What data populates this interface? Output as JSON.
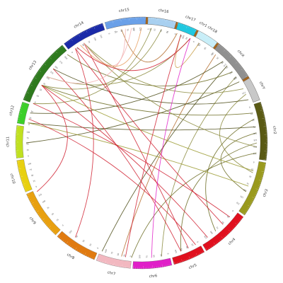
{
  "chart_data": {
    "type": "chord",
    "chromosomes": [
      {
        "name": "chr1",
        "color": "#a6661d",
        "start_deg": 345,
        "end_deg": 70,
        "ticks": [
          "0",
          "25",
          "50",
          "75",
          "100",
          "125",
          "150",
          "175",
          "200",
          "225"
        ]
      },
      {
        "name": "chr2",
        "color": "#5a5a14",
        "start_deg": 71,
        "end_deg": 98,
        "ticks": [
          "0",
          "25",
          "50",
          "75",
          "100",
          "125",
          "150",
          "175"
        ]
      },
      {
        "name": "chr3",
        "color": "#9a9a1e",
        "start_deg": 99,
        "end_deg": 125,
        "ticks": [
          "0",
          "25",
          "50",
          "75",
          "100",
          "125",
          "150"
        ]
      },
      {
        "name": "chr4",
        "color": "#e0101e",
        "start_deg": 126,
        "end_deg": 149,
        "ticks": [
          "0",
          "25",
          "50",
          "75",
          "100",
          "125"
        ]
      },
      {
        "name": "chr5",
        "color": "#e0101e",
        "start_deg": 150,
        "end_deg": 165,
        "ticks": [
          "0",
          "25",
          "50",
          "75",
          "100"
        ]
      },
      {
        "name": "chr6",
        "color": "#e020c8",
        "start_deg": 166,
        "end_deg": 184,
        "ticks": [
          "0",
          "25",
          "50",
          "75",
          "100"
        ]
      },
      {
        "name": "chr7",
        "color": "#f2b8c0",
        "start_deg": 185,
        "end_deg": 201,
        "ticks": [
          "0",
          "25",
          "50",
          "75",
          "100"
        ]
      },
      {
        "name": "chr8",
        "color": "#e07a10",
        "start_deg": 202,
        "end_deg": 222,
        "ticks": [
          "0",
          "25",
          "50",
          "75",
          "100"
        ]
      },
      {
        "name": "chr9",
        "color": "#e8a010",
        "start_deg": 223,
        "end_deg": 246,
        "ticks": [
          "0",
          "25",
          "50",
          "75",
          "100",
          "125"
        ]
      },
      {
        "name": "chr10",
        "color": "#e8d010",
        "start_deg": 247,
        "end_deg": 262,
        "ticks": [
          "0",
          "25",
          "50",
          "75",
          "100"
        ]
      },
      {
        "name": "chr11",
        "color": "#c0e020",
        "start_deg": 263,
        "end_deg": 278,
        "ticks": [
          "0",
          "25",
          "50",
          "75",
          "100"
        ]
      },
      {
        "name": "chr12",
        "color": "#3ccf2a",
        "start_deg": 279,
        "end_deg": 289,
        "ticks": [
          "0",
          "25",
          "50"
        ]
      },
      {
        "name": "chr13",
        "color": "#2e7a1e",
        "start_deg": 290,
        "end_deg": 321,
        "ticks": [
          "0",
          "25",
          "50",
          "75",
          "100",
          "125",
          "150",
          "175",
          "200"
        ]
      },
      {
        "name": "chr14",
        "color": "#1a2aa8",
        "start_deg": 322,
        "end_deg": 342,
        "ticks": [
          "0",
          "25",
          "50",
          "75",
          "100",
          "125"
        ]
      },
      {
        "name": "chr15",
        "color": "#6aa0e8",
        "start_deg": 343,
        "end_deg": 362,
        "ticks": [
          "0",
          "25",
          "50",
          "75",
          "100",
          "125"
        ]
      },
      {
        "name": "chr16",
        "color": "#a8d0f0",
        "start_deg": 363,
        "end_deg": 376,
        "ticks": [
          "0",
          "25",
          "50",
          "75"
        ]
      },
      {
        "name": "chr17",
        "color": "#20c8e0",
        "start_deg": 377,
        "end_deg": 386,
        "ticks": [
          "0",
          "25",
          "50"
        ]
      },
      {
        "name": "chr18",
        "color": "#c8eef8",
        "start_deg": 387,
        "end_deg": 397,
        "ticks": [
          "0",
          "25",
          "50"
        ]
      },
      {
        "name": "chrX",
        "color": "#909090",
        "start_deg": 398,
        "end_deg": 418,
        "ticks": [
          "0",
          "25",
          "50",
          "75",
          "100",
          "125"
        ]
      },
      {
        "name": "chrY",
        "color": "#c8c8c8",
        "start_deg": 419,
        "end_deg": 430,
        "ticks": []
      }
    ],
    "links": [
      {
        "from": 5,
        "to": 290,
        "color": "#8a8a3c"
      },
      {
        "from": 10,
        "to": 300,
        "color": "#8a8a3c"
      },
      {
        "from": 18,
        "to": 350,
        "color": "#b36b2a"
      },
      {
        "from": 25,
        "to": 305,
        "color": "#8a8a3c"
      },
      {
        "from": 30,
        "to": 380,
        "color": "#c89a40"
      },
      {
        "from": 40,
        "to": 190,
        "color": "#b36b2a"
      },
      {
        "from": 45,
        "to": 285,
        "color": "#4a4a14"
      },
      {
        "from": 48,
        "to": 200,
        "color": "#4a4a14"
      },
      {
        "from": 52,
        "to": 320,
        "color": "#6a6a20"
      },
      {
        "from": 55,
        "to": 170,
        "color": "#8a8a3c"
      },
      {
        "from": 58,
        "to": 270,
        "color": "#4a4a14"
      },
      {
        "from": 62,
        "to": 330,
        "color": "#8a8a3c"
      },
      {
        "from": 65,
        "to": 105,
        "color": "#8a8a3c"
      },
      {
        "from": 68,
        "to": 310,
        "color": "#4a4a14"
      },
      {
        "from": 75,
        "to": 300,
        "color": "#6a6a20"
      },
      {
        "from": 78,
        "to": 140,
        "color": "#6a6a20"
      },
      {
        "from": 82,
        "to": 280,
        "color": "#4a4a14"
      },
      {
        "from": 85,
        "to": 115,
        "color": "#6a6a20"
      },
      {
        "from": 90,
        "to": 160,
        "color": "#6a6a20"
      },
      {
        "from": 92,
        "to": 330,
        "color": "#8a8a3c"
      },
      {
        "from": 95,
        "to": 185,
        "color": "#6a6a20"
      },
      {
        "from": 104,
        "to": 300,
        "color": "#9a9a30"
      },
      {
        "from": 112,
        "to": 280,
        "color": "#9a9a30"
      },
      {
        "from": 130,
        "to": 290,
        "color": "#d02030"
      },
      {
        "from": 135,
        "to": 325,
        "color": "#d02030"
      },
      {
        "from": 145,
        "to": 300,
        "color": "#d02030"
      },
      {
        "from": 152,
        "to": 282,
        "color": "#d02030"
      },
      {
        "from": 156,
        "to": 330,
        "color": "#d02030"
      },
      {
        "from": 160,
        "to": 310,
        "color": "#d02030"
      },
      {
        "from": 175,
        "to": 385,
        "color": "#e020c8"
      },
      {
        "from": 188,
        "to": 380,
        "color": "#d02030"
      },
      {
        "from": 215,
        "to": 325,
        "color": "#d02030"
      },
      {
        "from": 245,
        "to": 300,
        "color": "#d02030"
      },
      {
        "from": 330,
        "to": 352,
        "color": "#f2b0b0"
      },
      {
        "from": 305,
        "to": 355,
        "color": "#f2b0b0"
      },
      {
        "from": 328,
        "to": 360,
        "color": "#e8a060"
      },
      {
        "from": 326,
        "to": 385,
        "color": "#d02030"
      }
    ]
  }
}
